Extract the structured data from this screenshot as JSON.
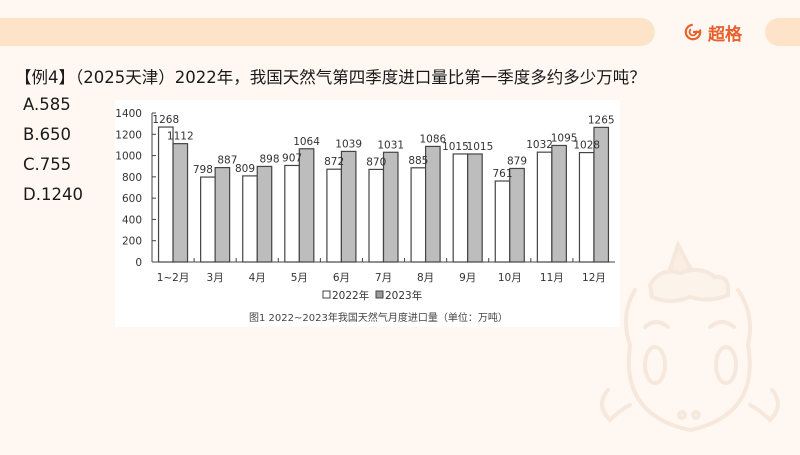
{
  "header": {
    "brand_name": "超格",
    "brand_icon": "g-logo-icon",
    "accent_color": "#e8612c",
    "bar_color": "#fde4c8"
  },
  "question": {
    "text": "【例4】（2025天津）2022年，我国天然气第四季度进口量比第一季度多约多少万吨？"
  },
  "options": [
    {
      "label": "A.585"
    },
    {
      "label": "B.650"
    },
    {
      "label": "C.755"
    },
    {
      "label": "D.1240"
    }
  ],
  "chart_data": {
    "type": "bar",
    "title": "图1  2022~2023年我国天然气月度进口量（单位：万吨）",
    "xlabel": "",
    "ylabel": "",
    "ylim": [
      0,
      1400
    ],
    "yticks": [
      0,
      200,
      400,
      600,
      800,
      1000,
      1200,
      1400
    ],
    "grid": false,
    "legend_position": "bottom",
    "categories": [
      "1~2月",
      "3月",
      "4月",
      "5月",
      "6月",
      "7月",
      "8月",
      "9月",
      "10月",
      "11月",
      "12月"
    ],
    "series": [
      {
        "name": "2022年",
        "color": "#ffffff",
        "values": [
          1268,
          798,
          809,
          907,
          872,
          870,
          885,
          1015,
          761,
          1032,
          1028
        ]
      },
      {
        "name": "2023年",
        "color": "#bdbdbd",
        "values": [
          1112,
          887,
          898,
          1064,
          1039,
          1031,
          1086,
          1015,
          879,
          1095,
          1265
        ]
      }
    ]
  },
  "legend": {
    "item_2022": "□2022年",
    "item_2023": "■2023年"
  }
}
